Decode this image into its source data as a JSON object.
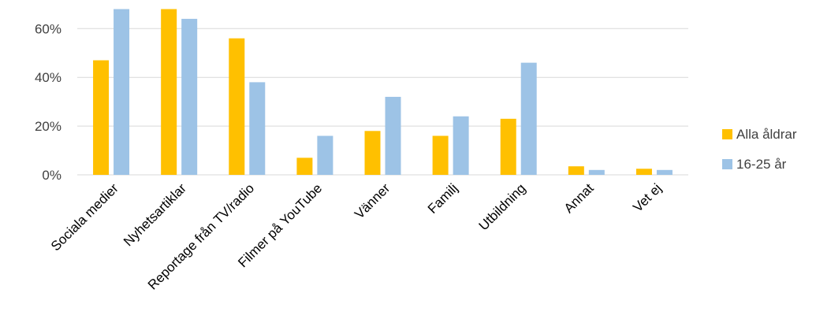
{
  "chart_data": {
    "type": "bar",
    "categories": [
      "Sociala medier",
      "Nyhetsartiklar",
      "Reportage från TV/radio",
      "Filmer på YouTube",
      "Vänner",
      "Familj",
      "Utbildning",
      "Annat",
      "Vet ej"
    ],
    "series": [
      {
        "name": "Alla åldrar",
        "color": "#FFC000",
        "values": [
          47,
          68,
          56,
          7,
          18,
          16,
          23,
          3.5,
          2.5
        ]
      },
      {
        "name": "16-25 år",
        "color": "#9DC3E6",
        "values": [
          68,
          64,
          38,
          16,
          32,
          24,
          46,
          2,
          2
        ]
      }
    ],
    "yticks": [
      0,
      20,
      40,
      60
    ],
    "ytick_labels": [
      "0%",
      "20%",
      "40%",
      "60%"
    ],
    "ylim": [
      0,
      70
    ],
    "grid": true,
    "legend_position": "right",
    "title": "",
    "xlabel": "",
    "ylabel": ""
  }
}
